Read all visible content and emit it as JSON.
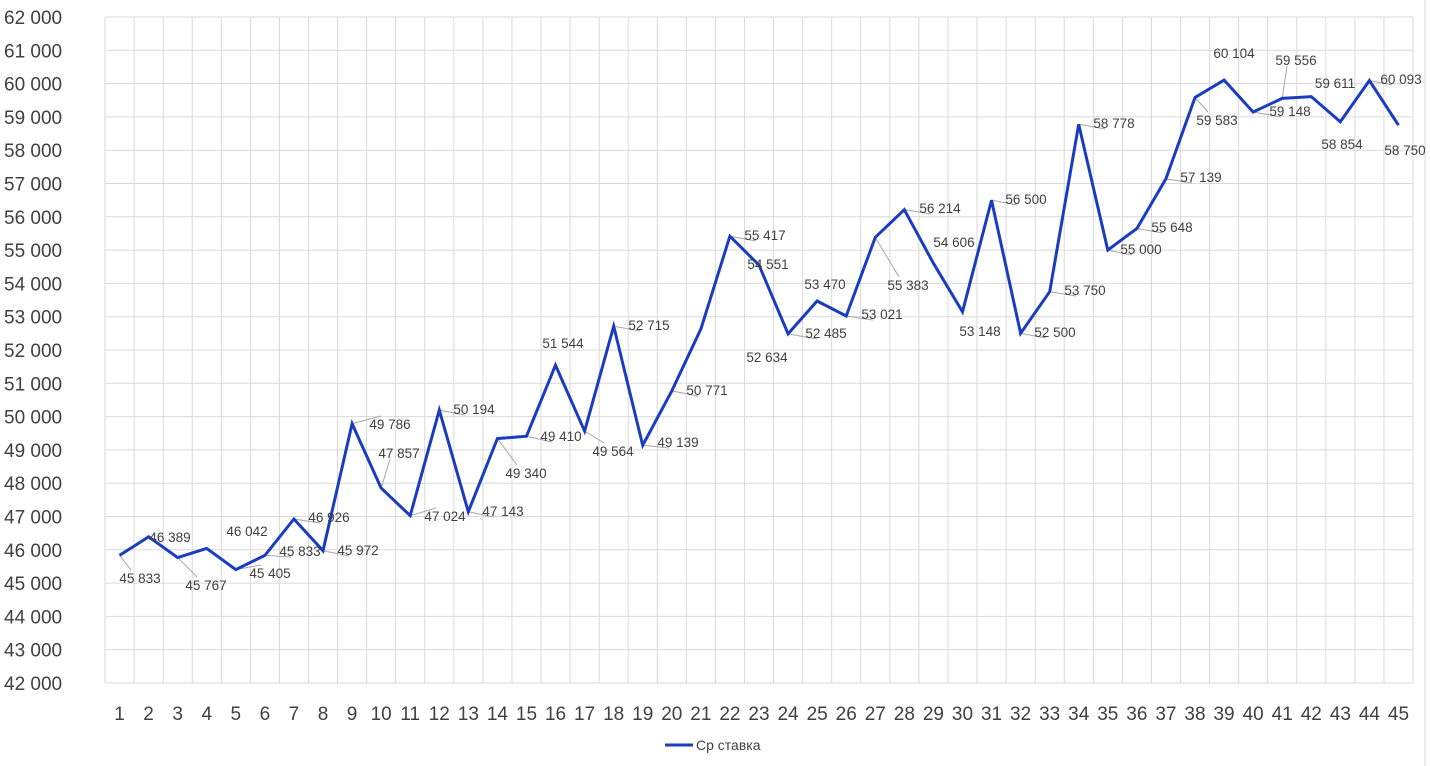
{
  "chart_data": {
    "type": "line",
    "title": "",
    "xlabel": "",
    "ylabel": "",
    "ylim": [
      42000,
      62000
    ],
    "ytick_step": 1000,
    "grid": true,
    "legend_position": "bottom",
    "categories": [
      "1",
      "2",
      "3",
      "4",
      "5",
      "6",
      "7",
      "8",
      "9",
      "10",
      "11",
      "12",
      "13",
      "14",
      "15",
      "16",
      "17",
      "18",
      "19",
      "20",
      "21",
      "22",
      "23",
      "24",
      "25",
      "26",
      "27",
      "28",
      "29",
      "30",
      "31",
      "32",
      "33",
      "34",
      "35",
      "36",
      "37",
      "38",
      "39",
      "40",
      "41",
      "42",
      "43",
      "44",
      "45"
    ],
    "series": [
      {
        "name": "Ср ставка",
        "color": "#1a3cc0",
        "values": [
          45833,
          46389,
          45767,
          46042,
          45405,
          45833,
          46926,
          45972,
          49786,
          47857,
          47024,
          50194,
          47143,
          49340,
          49410,
          51544,
          49564,
          52715,
          49139,
          50771,
          52634,
          55417,
          54551,
          52485,
          53470,
          53021,
          55383,
          56214,
          54606,
          53148,
          56500,
          52500,
          53750,
          58778,
          55000,
          55648,
          57139,
          59583,
          60104,
          59148,
          59556,
          59611,
          58854,
          60093,
          58750
        ],
        "data_labels": [
          "45 833",
          "46 389",
          "45 767",
          "46 042",
          "45 405",
          "45 833",
          "46 926",
          "45 972",
          "49 786",
          "47 857",
          "47 024",
          "50 194",
          "47 143",
          "49 340",
          "49 410",
          "51 544",
          "49 564",
          "52 715",
          "49 139",
          "50 771",
          "52 634",
          "55 417",
          "54 551",
          "52 485",
          "53 470",
          "53 021",
          "55 383",
          "56 214",
          "54 606",
          "53 148",
          "56 500",
          "52 500",
          "53 750",
          "58 778",
          "55 000",
          "55 648",
          "57 139",
          "59 583",
          "60 104",
          "59 148",
          "59 556",
          "59 611",
          "58 854",
          "60 093",
          "58 750"
        ]
      }
    ],
    "ytick_labels": [
      "42 000",
      "43 000",
      "44 000",
      "45 000",
      "46 000",
      "47 000",
      "48 000",
      "49 000",
      "50 000",
      "51 000",
      "52 000",
      "53 000",
      "54 000",
      "55 000",
      "56 000",
      "57 000",
      "58 000",
      "59 000",
      "60 000",
      "61 000",
      "62 000"
    ]
  }
}
